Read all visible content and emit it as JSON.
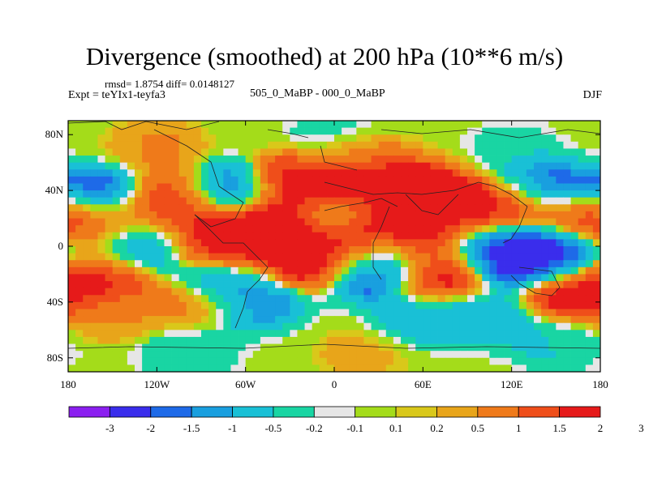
{
  "title": "Divergence (smoothed) at 200 hPa (10**6 m/s)",
  "stats": "rmsd= 1.8754 diff= 0.0148127",
  "expt": "Expt = teYIx1-teyfa3",
  "runs": "505_0_MaBP - 000_0_MaBP",
  "season": "DJF",
  "chart_data": {
    "type": "heatmap",
    "x_ticks": [
      {
        "value": -180,
        "label": "180"
      },
      {
        "value": -120,
        "label": "120W"
      },
      {
        "value": -60,
        "label": "60W"
      },
      {
        "value": 0,
        "label": "0"
      },
      {
        "value": 60,
        "label": "60E"
      },
      {
        "value": 120,
        "label": "120E"
      },
      {
        "value": 180,
        "label": "180"
      }
    ],
    "y_ticks": [
      {
        "value": 80,
        "label": "80N"
      },
      {
        "value": 40,
        "label": "40N"
      },
      {
        "value": 0,
        "label": "0"
      },
      {
        "value": -40,
        "label": "40S"
      },
      {
        "value": -80,
        "label": "80S"
      }
    ],
    "xlim": [
      -180,
      180
    ],
    "ylim": [
      -90,
      90
    ],
    "colorbar": {
      "colors": [
        "#8b1ff0",
        "#3a2dec",
        "#1e6ae8",
        "#199fdf",
        "#19c0d6",
        "#19d5a3",
        "#e6e6e6",
        "#a4dc1a",
        "#d9c81a",
        "#e8a51a",
        "#ef7a1a",
        "#ef4e1a",
        "#e61a1a"
      ],
      "labels": [
        "-3",
        "-2",
        "-1.5",
        "-1",
        "-0.5",
        "-0.2",
        "-0.1",
        "0.1",
        "0.2",
        "0.5",
        "1",
        "1.5",
        "2",
        "3"
      ]
    },
    "features": [
      {
        "lon": -158,
        "lat": 35,
        "value": -2.5
      },
      {
        "lon": -160,
        "lat": 15,
        "value": 2.2
      },
      {
        "lon": -145,
        "lat": 2,
        "value": -1.2
      },
      {
        "lon": -160,
        "lat": -20,
        "value": 2.0
      },
      {
        "lon": -120,
        "lat": 5,
        "value": -2.0
      },
      {
        "lon": -115,
        "lat": 25,
        "value": 2.4
      },
      {
        "lon": -100,
        "lat": 40,
        "value": 1.8
      },
      {
        "lon": -85,
        "lat": 8,
        "value": 3.0
      },
      {
        "lon": -75,
        "lat": 40,
        "value": -3.0
      },
      {
        "lon": -65,
        "lat": -5,
        "value": 3.0
      },
      {
        "lon": -70,
        "lat": -20,
        "value": -2.5
      },
      {
        "lon": -55,
        "lat": -40,
        "value": -1.5
      },
      {
        "lon": -40,
        "lat": 15,
        "value": 3.0
      },
      {
        "lon": -30,
        "lat": 45,
        "value": 2.0
      },
      {
        "lon": -20,
        "lat": -10,
        "value": 3.0
      },
      {
        "lon": 0,
        "lat": 40,
        "value": 2.5
      },
      {
        "lon": 0,
        "lat": 20,
        "value": -1.2
      },
      {
        "lon": 5,
        "lat": -5,
        "value": 3.0
      },
      {
        "lon": 15,
        "lat": 60,
        "value": 1.2
      },
      {
        "lon": 25,
        "lat": 10,
        "value": 3.0
      },
      {
        "lon": 20,
        "lat": -15,
        "value": -3.0
      },
      {
        "lon": 40,
        "lat": -10,
        "value": -2.5
      },
      {
        "lon": 55,
        "lat": 40,
        "value": 2.5
      },
      {
        "lon": 60,
        "lat": 0,
        "value": 3.0
      },
      {
        "lon": 70,
        "lat": -20,
        "value": 3.0
      },
      {
        "lon": 85,
        "lat": 20,
        "value": 2.5
      },
      {
        "lon": 100,
        "lat": 0,
        "value": -3.0
      },
      {
        "lon": 120,
        "lat": 30,
        "value": 2.5
      },
      {
        "lon": 140,
        "lat": 40,
        "value": -2.5
      },
      {
        "lon": 130,
        "lat": -10,
        "value": -3.0
      },
      {
        "lon": 150,
        "lat": -5,
        "value": -3.0
      },
      {
        "lon": 160,
        "lat": -30,
        "value": 2.5
      },
      {
        "lon": 170,
        "lat": 20,
        "value": 2.0
      },
      {
        "lon": -90,
        "lat": -40,
        "value": 1.0
      },
      {
        "lon": 60,
        "lat": -50,
        "value": -1.0
      },
      {
        "lon": -150,
        "lat": -50,
        "value": 0.5
      },
      {
        "lon": 100,
        "lat": -50,
        "value": -1.0
      },
      {
        "lon": 0,
        "lat": 75,
        "value": -0.5
      },
      {
        "lon": -120,
        "lat": 70,
        "value": 0.5
      },
      {
        "lon": 120,
        "lat": 70,
        "value": -0.3
      },
      {
        "lon": -100,
        "lat": -75,
        "value": -0.5
      },
      {
        "lon": 20,
        "lat": -75,
        "value": 0.3
      },
      {
        "lon": 150,
        "lat": -70,
        "value": -0.5
      }
    ]
  }
}
